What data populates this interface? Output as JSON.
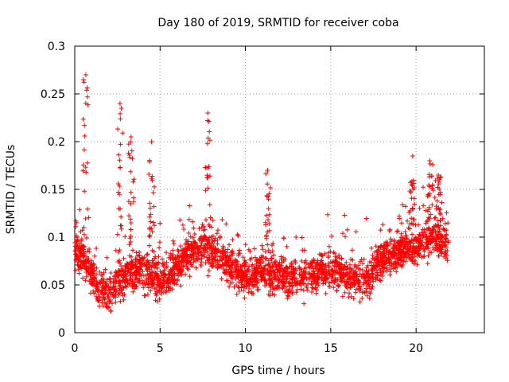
{
  "chart_data": {
    "type": "scatter",
    "title": "Day 180 of 2019, SRMTID for receiver coba",
    "xlabel": "GPS time / hours",
    "ylabel": "SRMTID / TECUs",
    "xlim": [
      0,
      24
    ],
    "ylim": [
      0,
      0.3
    ],
    "x_ticks": [
      0,
      5,
      10,
      15,
      20
    ],
    "x_tick_labels": [
      "0",
      "5",
      "10",
      "15",
      "20"
    ],
    "y_ticks": [
      0,
      0.05,
      0.1,
      0.15,
      0.2,
      0.25,
      0.3
    ],
    "y_tick_labels": [
      "0",
      "0.05",
      "0.1",
      "0.15",
      "0.2",
      "0.25",
      "0.3"
    ],
    "grid": true,
    "marker": "+",
    "series": [
      {
        "name": "SRMTID",
        "color": "#ff0000",
        "x_range": [
          0,
          21.9
        ],
        "baseline": [
          [
            0.0,
            0.085
          ],
          [
            0.5,
            0.08
          ],
          [
            1.0,
            0.06
          ],
          [
            1.5,
            0.045
          ],
          [
            2.0,
            0.04
          ],
          [
            2.5,
            0.05
          ],
          [
            3.0,
            0.06
          ],
          [
            3.5,
            0.065
          ],
          [
            4.0,
            0.065
          ],
          [
            4.5,
            0.06
          ],
          [
            5.0,
            0.055
          ],
          [
            5.5,
            0.06
          ],
          [
            6.0,
            0.07
          ],
          [
            6.5,
            0.08
          ],
          [
            7.0,
            0.085
          ],
          [
            7.5,
            0.09
          ],
          [
            8.0,
            0.085
          ],
          [
            8.5,
            0.08
          ],
          [
            9.0,
            0.07
          ],
          [
            9.5,
            0.065
          ],
          [
            10.0,
            0.06
          ],
          [
            10.5,
            0.06
          ],
          [
            11.0,
            0.065
          ],
          [
            11.5,
            0.06
          ],
          [
            12.0,
            0.06
          ],
          [
            12.5,
            0.055
          ],
          [
            13.0,
            0.055
          ],
          [
            13.5,
            0.06
          ],
          [
            14.0,
            0.06
          ],
          [
            14.5,
            0.065
          ],
          [
            15.0,
            0.065
          ],
          [
            15.5,
            0.065
          ],
          [
            16.0,
            0.06
          ],
          [
            16.5,
            0.055
          ],
          [
            17.0,
            0.055
          ],
          [
            17.5,
            0.065
          ],
          [
            18.0,
            0.075
          ],
          [
            18.5,
            0.08
          ],
          [
            19.0,
            0.085
          ],
          [
            19.5,
            0.09
          ],
          [
            20.0,
            0.09
          ],
          [
            20.5,
            0.095
          ],
          [
            21.0,
            0.1
          ],
          [
            21.5,
            0.095
          ],
          [
            21.9,
            0.09
          ]
        ],
        "bursts": [
          {
            "x": 0.65,
            "peak": 0.27
          },
          {
            "x": 2.65,
            "peak": 0.24
          },
          {
            "x": 3.3,
            "peak": 0.205
          },
          {
            "x": 4.5,
            "peak": 0.2
          },
          {
            "x": 7.8,
            "peak": 0.23
          },
          {
            "x": 11.3,
            "peak": 0.17
          },
          {
            "x": 19.8,
            "peak": 0.185
          },
          {
            "x": 20.8,
            "peak": 0.18
          },
          {
            "x": 21.3,
            "peak": 0.165
          }
        ],
        "point_count": 2600
      }
    ]
  }
}
